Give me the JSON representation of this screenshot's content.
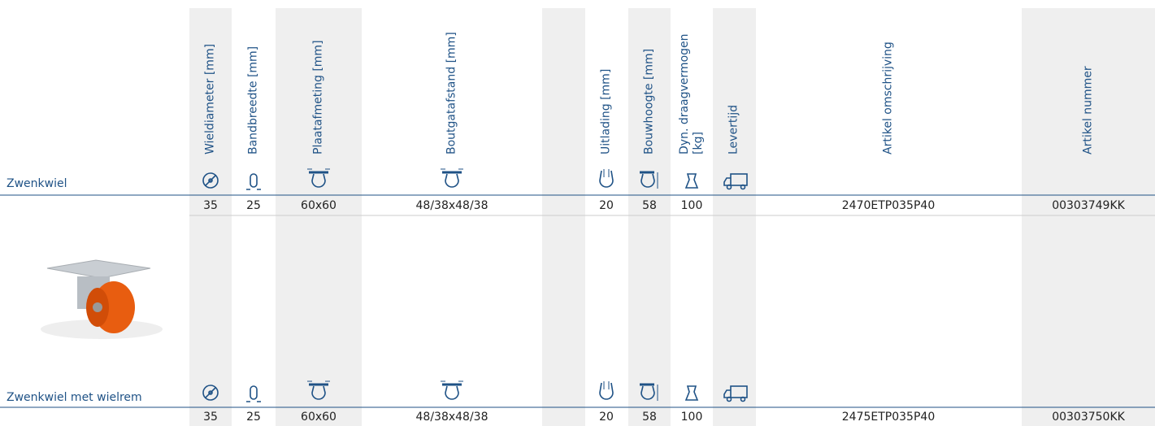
{
  "columns": [
    "Wieldiameter [mm]",
    "Bandbreedte [mm]",
    "Plaatafmeting [mm]",
    "Boutgatafstand [mm]",
    "Uitlading [mm]",
    "Bouwhoogte [mm]",
    "Dyn. draagvermogen [kg]",
    "Levertijd",
    "Artikel omschrijving",
    "Artikel nummer"
  ],
  "rows": [
    {
      "label": "Zwenkwiel",
      "cells": [
        35,
        25,
        "60x60",
        "48/38x48/38",
        20,
        58,
        100,
        null,
        "2470ETP035P40",
        "00303749KK"
      ]
    },
    {
      "label": "Zwenkwiel met wielrem",
      "cells": [
        35,
        25,
        "60x60",
        "48/38x48/38",
        20,
        58,
        100,
        null,
        "2475ETP035P40",
        "00303750KK"
      ]
    }
  ]
}
